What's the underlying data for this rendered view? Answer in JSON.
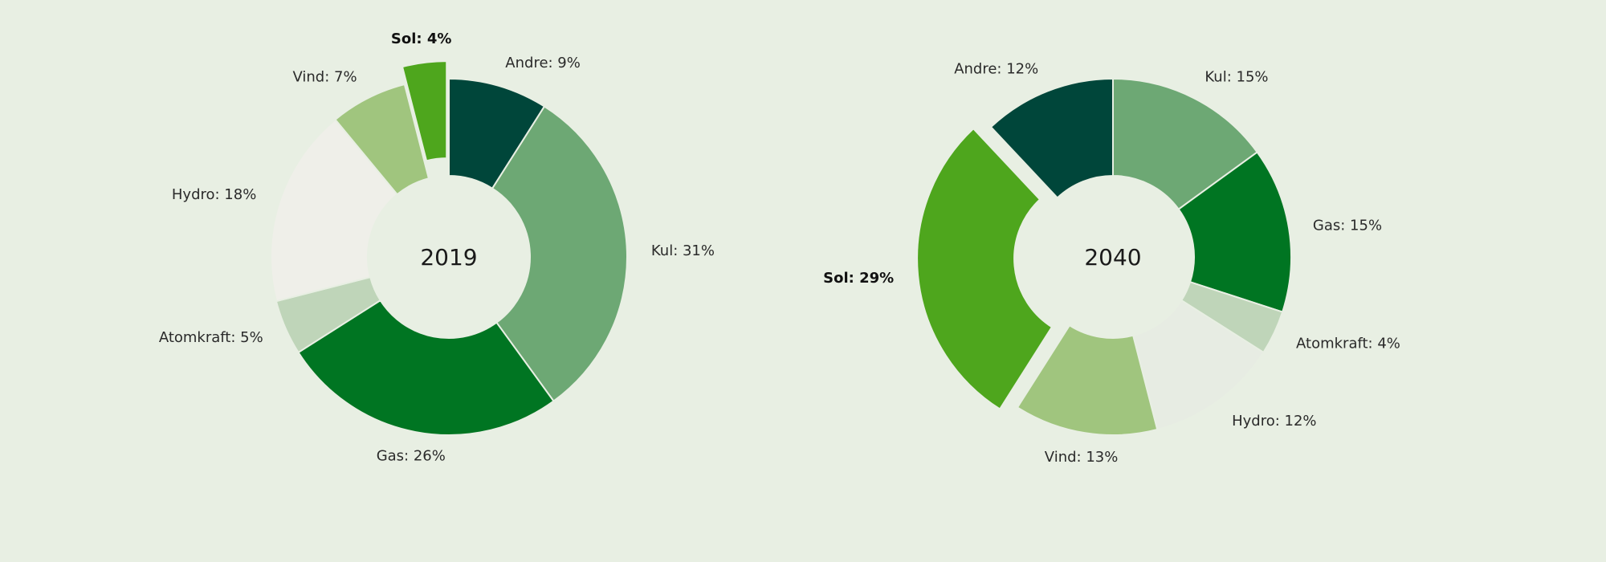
{
  "colors": {
    "background": "#e8efe3"
  },
  "chart_data": [
    {
      "type": "pie",
      "donut": true,
      "center_label": "2019",
      "slices": [
        {
          "name": "Andre",
          "value": 9,
          "label": "Andre: 9%",
          "color": "#00463a",
          "highlight": false
        },
        {
          "name": "Kul",
          "value": 31,
          "label": "Kul: 31%",
          "color": "#6da874",
          "highlight": false
        },
        {
          "name": "Gas",
          "value": 26,
          "label": "Gas: 26%",
          "color": "#007522",
          "highlight": false
        },
        {
          "name": "Atomkraft",
          "value": 5,
          "label": "Atomkraft: 5%",
          "color": "#bfd5b9",
          "highlight": false
        },
        {
          "name": "Hydro",
          "value": 18,
          "label": "Hydro: 18%",
          "color": "#efefe9",
          "highlight": false
        },
        {
          "name": "Vind",
          "value": 7,
          "label": "Vind: 7%",
          "color": "#a0c57e",
          "highlight": false
        },
        {
          "name": "Sol",
          "value": 4,
          "label": "Sol: 4%",
          "color": "#4ea61d",
          "highlight": true
        }
      ]
    },
    {
      "type": "pie",
      "donut": true,
      "center_label": "2040",
      "slices": [
        {
          "name": "Kul",
          "value": 15,
          "label": "Kul: 15%",
          "color": "#6da874",
          "highlight": false
        },
        {
          "name": "Gas",
          "value": 15,
          "label": "Gas: 15%",
          "color": "#007522",
          "highlight": false
        },
        {
          "name": "Atomkraft",
          "value": 4,
          "label": "Atomkraft: 4%",
          "color": "#bfd5b9",
          "highlight": false
        },
        {
          "name": "Hydro",
          "value": 12,
          "label": "Hydro: 12%",
          "color": "#e7ece3",
          "highlight": false
        },
        {
          "name": "Vind",
          "value": 13,
          "label": "Vind: 13%",
          "color": "#a0c57e",
          "highlight": false
        },
        {
          "name": "Sol",
          "value": 29,
          "label": "Sol: 29%",
          "color": "#4ea61d",
          "highlight": true
        },
        {
          "name": "Andre",
          "value": 12,
          "label": "Andre: 12%",
          "color": "#00463a",
          "highlight": false
        }
      ]
    }
  ]
}
